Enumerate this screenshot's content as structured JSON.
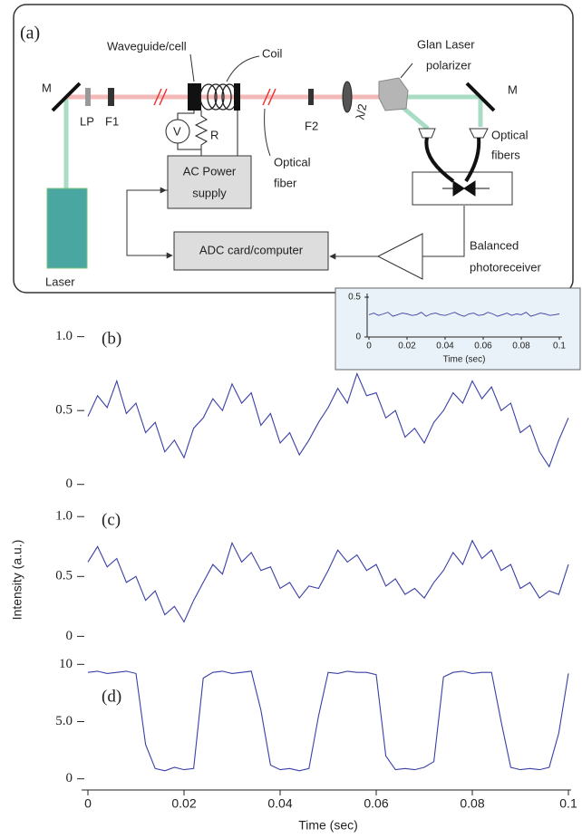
{
  "diagram": {
    "label": "(a)",
    "waveguide": "Waveguide/cell",
    "coil": "Coil",
    "glan": [
      "Glan Laser",
      "polarizer"
    ],
    "mirror_left": "M",
    "mirror_right": "M",
    "lp": "LP",
    "f1": "F1",
    "f2": "F2",
    "voltmeter": "V",
    "resistor": "R",
    "optical_fiber": [
      "Optical",
      "fiber"
    ],
    "half_wave": "λ/2",
    "optical_fibers": [
      "Optical",
      "fibers"
    ],
    "ac_power": [
      "AC Power",
      "supply"
    ],
    "adc": "ADC card/computer",
    "photoreceiver": [
      "Balanced",
      "photoreceiver"
    ],
    "laser": "Laser"
  },
  "chart_data": [
    {
      "type": "line",
      "title": "(b)",
      "x": [
        0,
        0.002,
        0.004,
        0.006,
        0.008,
        0.01,
        0.012,
        0.014,
        0.016,
        0.018,
        0.02,
        0.022,
        0.024,
        0.026,
        0.028,
        0.03,
        0.032,
        0.034,
        0.036,
        0.038,
        0.04,
        0.042,
        0.044,
        0.046,
        0.048,
        0.05,
        0.052,
        0.054,
        0.056,
        0.058,
        0.06,
        0.062,
        0.064,
        0.066,
        0.068,
        0.07,
        0.072,
        0.074,
        0.076,
        0.078,
        0.08,
        0.082,
        0.084,
        0.086,
        0.088,
        0.09,
        0.092,
        0.094,
        0.096,
        0.098,
        0.1
      ],
      "series": [
        {
          "color": "#3a3fa6",
          "values": [
            0.46,
            0.6,
            0.52,
            0.7,
            0.48,
            0.55,
            0.35,
            0.42,
            0.22,
            0.3,
            0.18,
            0.38,
            0.45,
            0.58,
            0.5,
            0.68,
            0.55,
            0.62,
            0.4,
            0.48,
            0.28,
            0.35,
            0.2,
            0.3,
            0.42,
            0.52,
            0.65,
            0.55,
            0.75,
            0.6,
            0.62,
            0.45,
            0.5,
            0.32,
            0.38,
            0.28,
            0.42,
            0.5,
            0.62,
            0.55,
            0.7,
            0.58,
            0.66,
            0.5,
            0.55,
            0.35,
            0.4,
            0.22,
            0.12,
            0.3,
            0.45
          ]
        }
      ],
      "xlim": [
        0,
        0.1
      ],
      "ylim": [
        -0.1,
        1.2
      ],
      "yticks": [
        0,
        0.5,
        {
          "value": 1,
          "label": "1.0"
        }
      ]
    },
    {
      "type": "line",
      "title": "(c)",
      "ylabel": "Intensity (a.u.)",
      "x": [
        0,
        0.002,
        0.004,
        0.006,
        0.008,
        0.01,
        0.012,
        0.014,
        0.016,
        0.018,
        0.02,
        0.022,
        0.024,
        0.026,
        0.028,
        0.03,
        0.032,
        0.034,
        0.036,
        0.038,
        0.04,
        0.042,
        0.044,
        0.046,
        0.048,
        0.05,
        0.052,
        0.054,
        0.056,
        0.058,
        0.06,
        0.062,
        0.064,
        0.066,
        0.068,
        0.07,
        0.072,
        0.074,
        0.076,
        0.078,
        0.08,
        0.082,
        0.084,
        0.086,
        0.088,
        0.09,
        0.092,
        0.094,
        0.096,
        0.098,
        0.1
      ],
      "series": [
        {
          "color": "#3a3fa6",
          "values": [
            0.62,
            0.75,
            0.58,
            0.65,
            0.45,
            0.5,
            0.3,
            0.38,
            0.18,
            0.25,
            0.12,
            0.3,
            0.45,
            0.6,
            0.52,
            0.78,
            0.62,
            0.7,
            0.55,
            0.58,
            0.4,
            0.45,
            0.32,
            0.42,
            0.4,
            0.55,
            0.72,
            0.62,
            0.68,
            0.55,
            0.6,
            0.42,
            0.48,
            0.35,
            0.4,
            0.32,
            0.45,
            0.55,
            0.7,
            0.6,
            0.8,
            0.65,
            0.72,
            0.55,
            0.6,
            0.4,
            0.45,
            0.32,
            0.38,
            0.35,
            0.6
          ]
        }
      ],
      "xlim": [
        0,
        0.1
      ],
      "ylim": [
        -0.05,
        1.1
      ],
      "yticks": [
        0,
        0.5,
        {
          "value": 1,
          "label": "1.0"
        }
      ]
    },
    {
      "type": "line",
      "title": "(d)",
      "xlabel": "Time (sec)",
      "x": [
        0,
        0.002,
        0.004,
        0.006,
        0.008,
        0.01,
        0.012,
        0.014,
        0.016,
        0.018,
        0.02,
        0.022,
        0.024,
        0.026,
        0.028,
        0.03,
        0.032,
        0.034,
        0.036,
        0.038,
        0.04,
        0.042,
        0.044,
        0.046,
        0.048,
        0.05,
        0.052,
        0.054,
        0.056,
        0.058,
        0.06,
        0.062,
        0.064,
        0.066,
        0.068,
        0.07,
        0.072,
        0.074,
        0.076,
        0.078,
        0.08,
        0.082,
        0.084,
        0.086,
        0.088,
        0.09,
        0.092,
        0.094,
        0.096,
        0.098,
        0.1
      ],
      "series": [
        {
          "color": "#3a3fa6",
          "values": [
            9.3,
            9.4,
            9.2,
            9.3,
            9.4,
            9.2,
            3.0,
            0.9,
            0.7,
            1.0,
            0.8,
            0.9,
            8.8,
            9.3,
            9.4,
            9.2,
            9.3,
            9.4,
            6.0,
            1.2,
            0.8,
            0.9,
            0.7,
            0.9,
            5.5,
            9.3,
            9.2,
            9.4,
            9.3,
            9.3,
            9.1,
            2.0,
            0.8,
            0.9,
            0.8,
            1.0,
            1.5,
            8.9,
            9.3,
            9.4,
            9.2,
            9.3,
            9.3,
            5.0,
            1.0,
            0.8,
            0.9,
            0.8,
            1.0,
            4.0,
            9.2
          ]
        }
      ],
      "xlim": [
        0,
        0.1
      ],
      "xticks": [
        0,
        0.02,
        0.04,
        0.06,
        0.08,
        0.1
      ],
      "ylim": [
        -0.5,
        10.5
      ],
      "yticks": [
        0,
        {
          "value": 5,
          "label": "5.0"
        },
        10
      ]
    },
    {
      "type": "line",
      "xlabel": "Time (sec)",
      "x": [
        0,
        0.0025,
        0.005,
        0.0075,
        0.01,
        0.0125,
        0.015,
        0.0175,
        0.02,
        0.0225,
        0.025,
        0.0275,
        0.03,
        0.0325,
        0.035,
        0.0375,
        0.04,
        0.0425,
        0.045,
        0.0475,
        0.05,
        0.0525,
        0.055,
        0.0575,
        0.06,
        0.0625,
        0.065,
        0.0675,
        0.07,
        0.0725,
        0.075,
        0.0775,
        0.08,
        0.0825,
        0.085,
        0.0875,
        0.09,
        0.0925,
        0.095,
        0.0975,
        0.1
      ],
      "series": [
        {
          "color": "#3a3fa6",
          "values": [
            0.28,
            0.3,
            0.27,
            0.29,
            0.31,
            0.26,
            0.28,
            0.3,
            0.29,
            0.27,
            0.28,
            0.31,
            0.26,
            0.29,
            0.3,
            0.28,
            0.27,
            0.29,
            0.31,
            0.28,
            0.26,
            0.29,
            0.3,
            0.27,
            0.28,
            0.31,
            0.29,
            0.26,
            0.28,
            0.3,
            0.27,
            0.29,
            0.28,
            0.31,
            0.26,
            0.28,
            0.3,
            0.29,
            0.27,
            0.28,
            0.29
          ]
        }
      ],
      "xlim": [
        0,
        0.1
      ],
      "xticks": [
        0,
        0.02,
        0.04,
        0.06,
        0.08,
        0.1
      ],
      "ylim": [
        0,
        0.5
      ],
      "yticks": [
        0,
        0.5
      ]
    }
  ]
}
